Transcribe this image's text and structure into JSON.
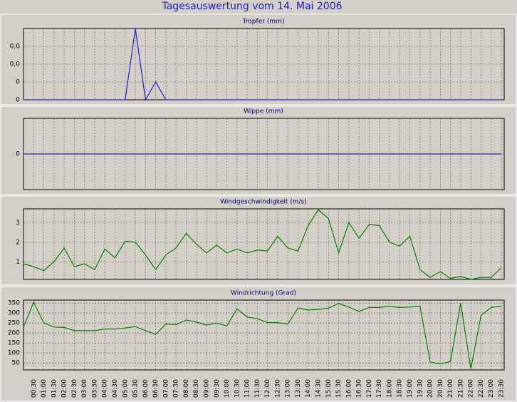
{
  "title": "Tagesauswertung vom 14. Mai 2006",
  "chart_data": [
    {
      "type": "line",
      "title": "Tropfer (mm)",
      "color": "#1f1fd0",
      "grid": true,
      "ylim": [
        0,
        0.04
      ],
      "yticks": [
        0,
        {
          "value": 0.01,
          "label": "0"
        },
        {
          "value": 0.02,
          "label": "0,0"
        },
        {
          "value": 0.03,
          "label": "0,0"
        }
      ],
      "values": [
        0,
        0,
        0,
        0,
        0,
        0,
        0,
        0,
        0,
        0,
        0,
        0.04,
        0,
        0.01,
        0,
        0,
        0,
        0,
        0,
        0,
        0,
        0,
        0,
        0,
        0,
        0,
        0,
        0,
        0,
        0,
        0,
        0,
        0,
        0,
        0,
        0,
        0,
        0,
        0,
        0,
        0,
        0,
        0,
        0,
        0,
        0,
        0,
        0
      ]
    },
    {
      "type": "line",
      "title": "Wippe (mm)",
      "color": "#1f1fd0",
      "grid": true,
      "ylim": [
        -1,
        1
      ],
      "yticks": [
        0
      ],
      "values": [
        0,
        0,
        0,
        0,
        0,
        0,
        0,
        0,
        0,
        0,
        0,
        0,
        0,
        0,
        0,
        0,
        0,
        0,
        0,
        0,
        0,
        0,
        0,
        0,
        0,
        0,
        0,
        0,
        0,
        0,
        0,
        0,
        0,
        0,
        0,
        0,
        0,
        0,
        0,
        0,
        0,
        0,
        0,
        0,
        0,
        0,
        0,
        0
      ]
    },
    {
      "type": "line",
      "title": "Windgeschwindigkeit (m/s)",
      "color": "#008000",
      "grid": true,
      "ylim": [
        0.1,
        3.7
      ],
      "yticks": [
        1,
        2,
        3
      ],
      "values": [
        0.9,
        0.75,
        0.55,
        1.0,
        1.7,
        0.75,
        0.9,
        0.6,
        1.65,
        1.2,
        2.05,
        2.0,
        1.35,
        0.6,
        1.35,
        1.7,
        2.45,
        1.9,
        1.45,
        1.85,
        1.45,
        1.65,
        1.45,
        1.6,
        1.55,
        2.3,
        1.7,
        1.55,
        2.85,
        3.65,
        3.2,
        1.45,
        3.0,
        2.2,
        2.9,
        2.85,
        2.0,
        1.8,
        2.3,
        0.6,
        0.2,
        0.5,
        0.15,
        0.25,
        0.1,
        0.2,
        0.2,
        0.7
      ]
    },
    {
      "type": "line",
      "title": "Windrichtung (Grad)",
      "color": "#008000",
      "grid": true,
      "ylim": [
        15,
        365
      ],
      "yticks": [
        50,
        100,
        150,
        200,
        250,
        300,
        350
      ],
      "categories": [
        null,
        "00:30",
        "01:00",
        "01:30",
        "02:00",
        "02:30",
        "03:00",
        "03:30",
        "04:00",
        "04:30",
        "05:00",
        "05:30",
        "06:00",
        "06:30",
        "07:00",
        "07:30",
        "08:00",
        "08:30",
        "09:00",
        "09:30",
        "10:00",
        "10:30",
        "11:00",
        "11:30",
        "12:00",
        "12:30",
        "13:00",
        "13:30",
        "14:00",
        "14:30",
        "15:00",
        "15:30",
        "16:00",
        "16:30",
        "17:00",
        "17:30",
        "18:00",
        "18:30",
        "19:00",
        "19:30",
        "20:00",
        "20:30",
        "21:00",
        "21:30",
        "22:00",
        "22:30",
        "23:00",
        "23:30"
      ],
      "values": [
        230,
        355,
        250,
        230,
        228,
        212,
        212,
        212,
        220,
        220,
        225,
        232,
        212,
        193,
        245,
        242,
        265,
        255,
        240,
        250,
        235,
        322,
        280,
        272,
        252,
        252,
        245,
        325,
        315,
        318,
        325,
        348,
        330,
        308,
        328,
        328,
        333,
        328,
        330,
        335,
        55,
        45,
        57,
        350,
        20,
        288,
        328,
        335
      ]
    }
  ]
}
